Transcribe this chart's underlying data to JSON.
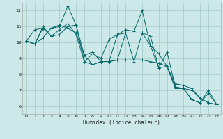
{
  "title": "",
  "xlabel": "Humidex (Indice chaleur)",
  "ylabel": "",
  "bg_color": "#cce8e8",
  "grid_color": "#aacccc",
  "line_color": "#006666",
  "xlim": [
    -0.5,
    23.5
  ],
  "ylim": [
    5.5,
    12.5
  ],
  "xticks": [
    0,
    1,
    2,
    3,
    4,
    5,
    6,
    7,
    8,
    9,
    10,
    11,
    12,
    13,
    14,
    15,
    16,
    17,
    18,
    19,
    20,
    21,
    22,
    23
  ],
  "yticks": [
    6,
    7,
    8,
    9,
    10,
    11,
    12
  ],
  "series": [
    [
      10.1,
      10.8,
      10.9,
      10.9,
      11.0,
      12.3,
      11.1,
      8.8,
      9.3,
      9.0,
      10.2,
      10.5,
      10.8,
      10.7,
      12.0,
      9.8,
      9.3,
      8.5,
      7.1,
      7.1,
      7.0,
      6.5,
      6.2,
      6.1
    ],
    [
      10.1,
      9.9,
      11.0,
      10.4,
      10.8,
      11.2,
      10.5,
      8.8,
      8.6,
      8.8,
      8.8,
      8.9,
      10.6,
      10.6,
      10.6,
      10.4,
      8.4,
      9.4,
      7.2,
      7.1,
      6.4,
      6.2,
      7.0,
      6.1
    ],
    [
      10.1,
      9.9,
      10.3,
      10.9,
      11.1,
      10.9,
      10.6,
      9.2,
      9.4,
      8.8,
      8.8,
      8.9,
      8.9,
      8.9,
      8.9,
      8.8,
      8.7,
      8.5,
      7.4,
      7.3,
      7.1,
      6.5,
      6.2,
      6.1
    ],
    [
      10.1,
      9.9,
      10.9,
      10.4,
      10.5,
      11.0,
      11.1,
      9.2,
      8.6,
      8.8,
      8.8,
      10.5,
      10.6,
      8.8,
      10.6,
      9.8,
      8.4,
      8.5,
      7.2,
      7.1,
      6.4,
      6.2,
      6.8,
      6.1
    ]
  ]
}
